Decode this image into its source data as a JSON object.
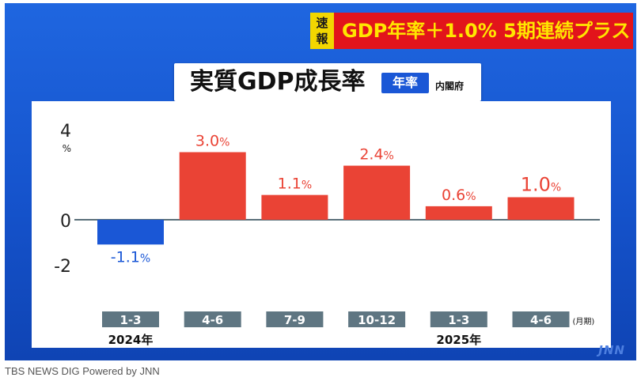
{
  "breaking_tag": [
    "速",
    "報"
  ],
  "headline": "GDP年率＋1.0%  5期連続プラス",
  "title_badge": "年率",
  "source": "内閣府",
  "watermark": "JNN",
  "caption": "TBS NEWS DIG Powered by JNN",
  "colors": {
    "positive": "#ea4335",
    "negative": "#1a57d6",
    "tick_box": "#5f7682"
  },
  "chart_data": {
    "type": "bar",
    "title": "実質GDP成長率",
    "categories": [
      "1-3",
      "4-6",
      "7-9",
      "10-12",
      "1-3",
      "4-6"
    ],
    "years": [
      {
        "label": "2024年",
        "category_index": 0
      },
      {
        "label": "2025年",
        "category_index": 4
      }
    ],
    "unit_suffix": "(月期)",
    "values": [
      -1.1,
      3.0,
      1.1,
      2.4,
      0.6,
      1.0
    ],
    "data_labels": [
      "-1.1",
      "3.0",
      "1.1",
      "2.4",
      "0.6",
      "1.0"
    ],
    "data_label_unit": "%",
    "y_ticks": [
      {
        "value": 4,
        "label": "4"
      },
      {
        "value": 0,
        "label": "0"
      },
      {
        "value": -2,
        "label": "-2"
      }
    ],
    "y_unit": "%",
    "ylim": [
      -4,
      4.2
    ],
    "grid": false,
    "legend": "none"
  }
}
